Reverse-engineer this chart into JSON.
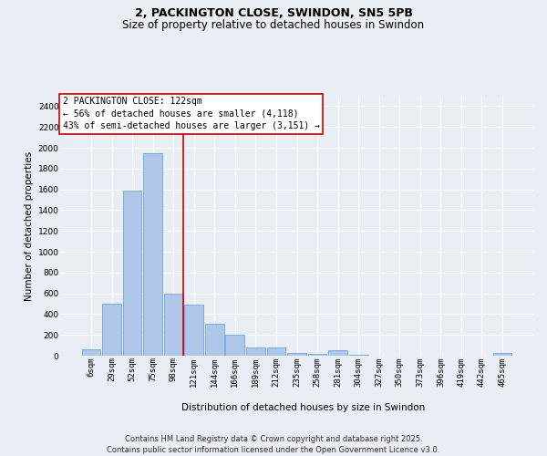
{
  "title": "2, PACKINGTON CLOSE, SWINDON, SN5 5PB",
  "subtitle": "Size of property relative to detached houses in Swindon",
  "xlabel": "Distribution of detached houses by size in Swindon",
  "ylabel": "Number of detached properties",
  "footer_line1": "Contains HM Land Registry data © Crown copyright and database right 2025.",
  "footer_line2": "Contains public sector information licensed under the Open Government Licence v3.0.",
  "bin_labels": [
    "6sqm",
    "29sqm",
    "52sqm",
    "75sqm",
    "98sqm",
    "121sqm",
    "144sqm",
    "166sqm",
    "189sqm",
    "212sqm",
    "235sqm",
    "258sqm",
    "281sqm",
    "304sqm",
    "327sqm",
    "350sqm",
    "373sqm",
    "396sqm",
    "419sqm",
    "442sqm",
    "465sqm"
  ],
  "bar_values": [
    60,
    500,
    1590,
    1950,
    600,
    490,
    310,
    200,
    80,
    75,
    30,
    20,
    55,
    10,
    0,
    0,
    0,
    0,
    0,
    0,
    25
  ],
  "bar_color": "#aec6e8",
  "bar_edge_color": "#5b9bd5",
  "property_line_color": "#cc0000",
  "annotation_text": "2 PACKINGTON CLOSE: 122sqm\n← 56% of detached houses are smaller (4,118)\n43% of semi-detached houses are larger (3,151) →",
  "annotation_box_color": "#ffffff",
  "annotation_box_edge_color": "#cc0000",
  "ylim": [
    0,
    2500
  ],
  "yticks": [
    0,
    200,
    400,
    600,
    800,
    1000,
    1200,
    1400,
    1600,
    1800,
    2000,
    2200,
    2400
  ],
  "bg_color": "#e8eef4",
  "grid_color": "#ffffff",
  "title_fontsize": 9,
  "subtitle_fontsize": 8.5,
  "axis_label_fontsize": 7.5,
  "tick_fontsize": 6.5,
  "annotation_fontsize": 7,
  "footer_fontsize": 6
}
